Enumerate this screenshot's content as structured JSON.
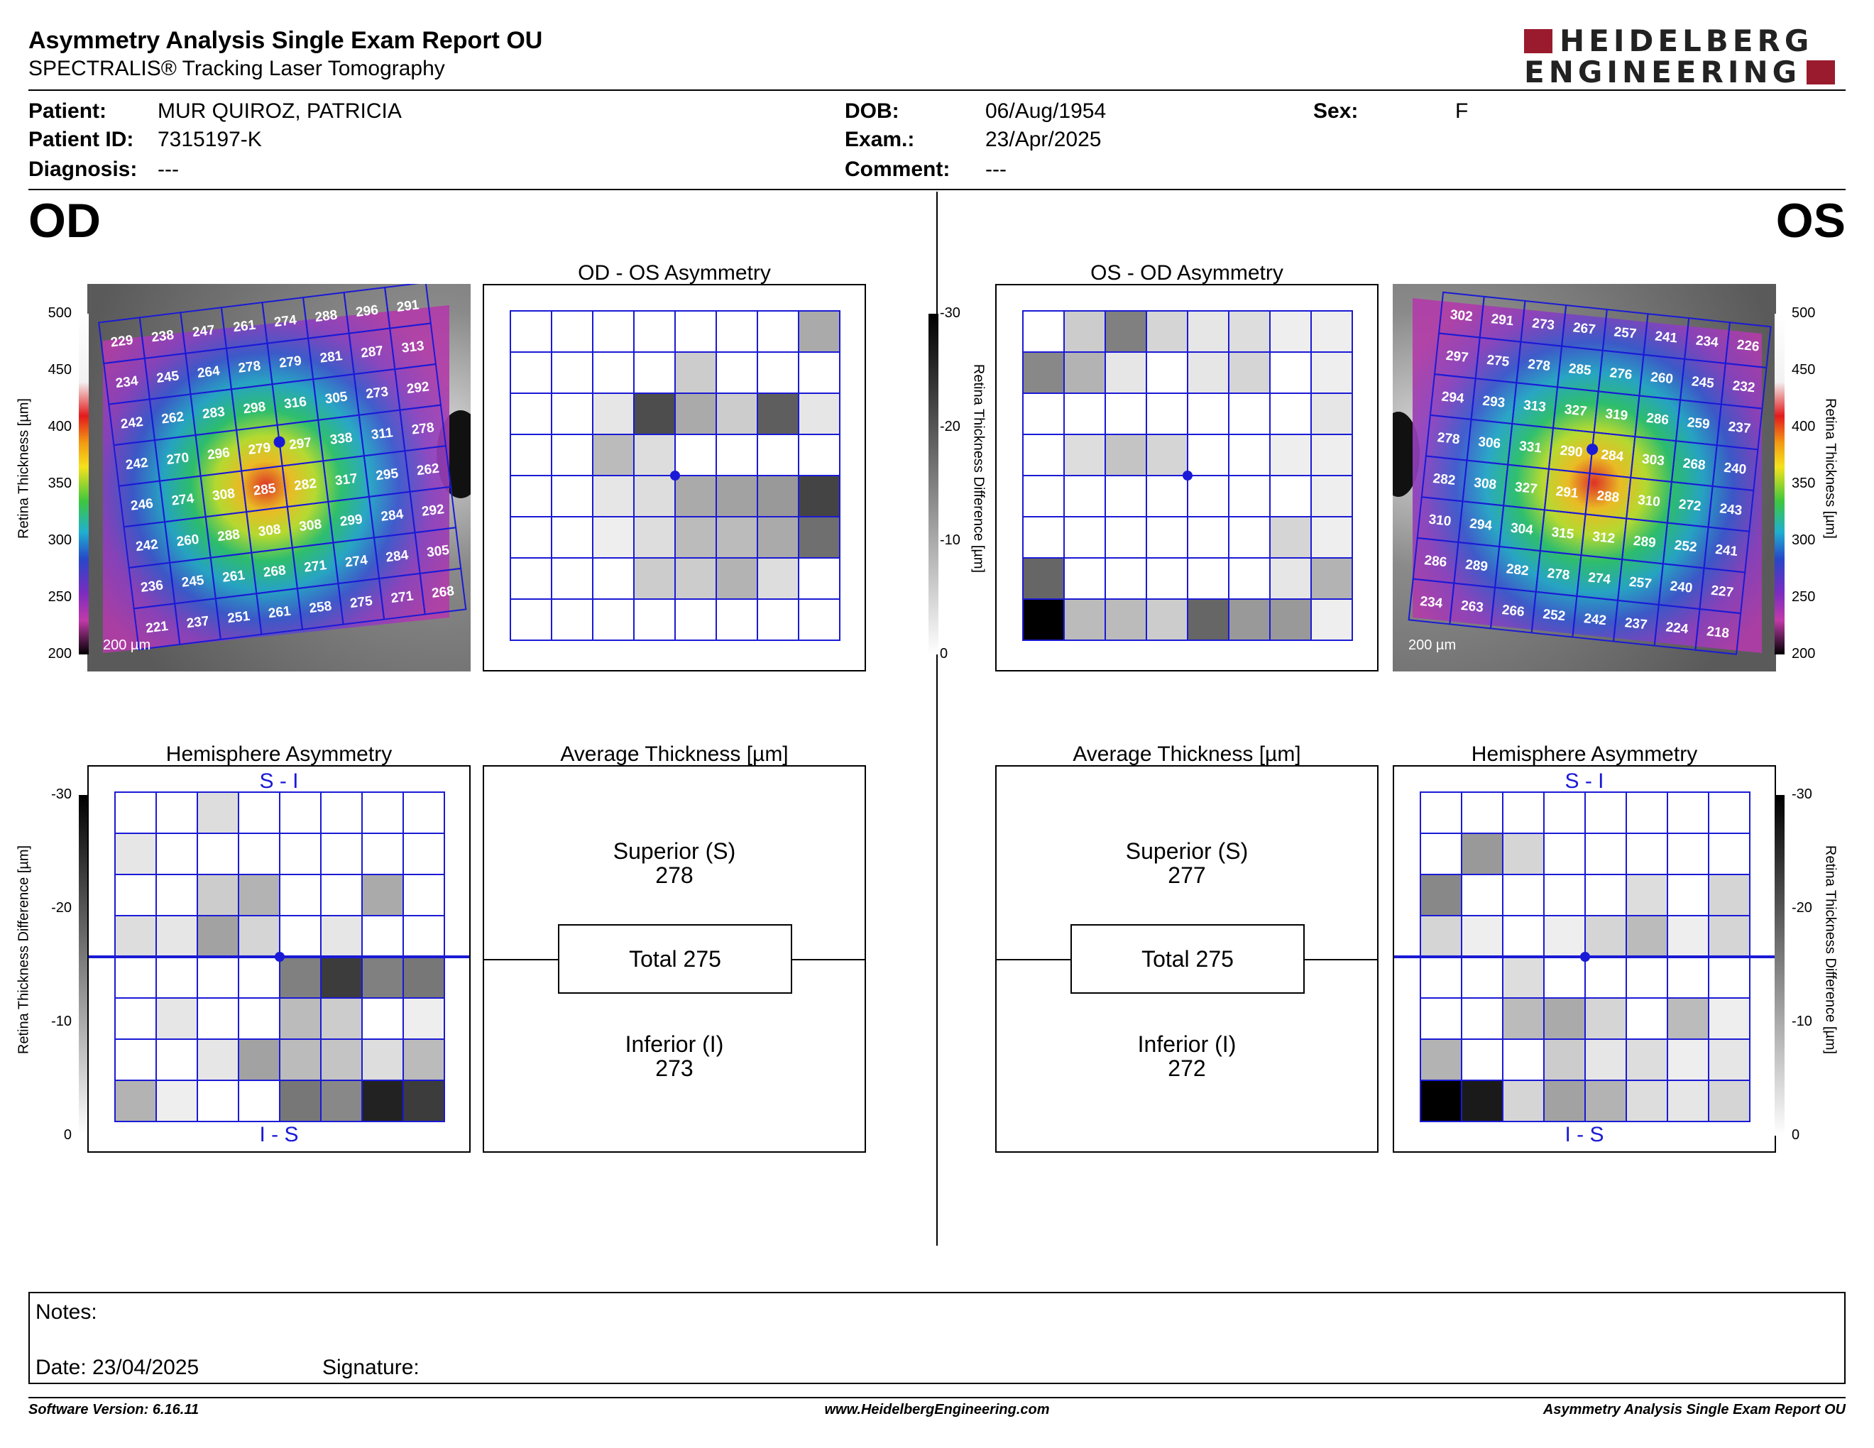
{
  "header": {
    "title": "Asymmetry Analysis Single Exam Report OU",
    "subtitle": "SPECTRALIS® Tracking Laser Tomography",
    "logo_line1": "HEIDELBERG",
    "logo_line2": "ENGINEERING",
    "brand_color": "#9a1b2d"
  },
  "patient": {
    "patient_label": "Patient:",
    "patient_value": "MUR QUIROZ, PATRICIA",
    "id_label": "Patient ID:",
    "id_value": "7315197-K",
    "diagnosis_label": "Diagnosis:",
    "diagnosis_value": "---",
    "dob_label": "DOB:",
    "dob_value": "06/Aug/1954",
    "exam_label": "Exam.:",
    "exam_value": "23/Apr/2025",
    "comment_label": "Comment:",
    "comment_value": "---",
    "sex_label": "Sex:",
    "sex_value": "F"
  },
  "od": {
    "eye_label": "OD",
    "asym_title": "OD - OS Asymmetry",
    "hemi_title": "Hemisphere Asymmetry",
    "hemi_top": "S - I",
    "hemi_bottom": "I - S",
    "avg_title": "Average Thickness [µm]",
    "superior_label": "Superior (S)",
    "superior_value": "278",
    "total_text": "Total 275",
    "inferior_label": "Inferior (I)",
    "inferior_value": "273",
    "scale_label": "200 µm",
    "thickness_grid": [
      [
        229,
        238,
        247,
        261,
        274,
        288,
        296,
        291
      ],
      [
        234,
        245,
        264,
        278,
        279,
        281,
        287,
        313
      ],
      [
        242,
        262,
        283,
        298,
        316,
        305,
        273,
        292
      ],
      [
        242,
        270,
        296,
        279,
        297,
        338,
        311,
        278
      ],
      [
        246,
        274,
        308,
        285,
        282,
        317,
        295,
        262
      ],
      [
        242,
        260,
        288,
        308,
        308,
        299,
        284,
        292
      ],
      [
        236,
        245,
        261,
        268,
        271,
        274,
        284,
        305
      ],
      [
        221,
        237,
        251,
        261,
        258,
        275,
        271,
        268
      ]
    ],
    "asym_grid": [
      [
        0,
        0,
        0,
        0,
        0,
        0,
        0,
        10
      ],
      [
        0,
        0,
        0,
        0,
        6,
        0,
        0,
        0
      ],
      [
        0,
        0,
        3,
        21,
        10,
        6,
        19,
        3
      ],
      [
        0,
        0,
        8,
        4,
        0,
        0,
        0,
        0
      ],
      [
        0,
        0,
        3,
        4,
        10,
        11,
        12,
        22
      ],
      [
        0,
        0,
        2,
        4,
        8,
        8,
        10,
        17
      ],
      [
        0,
        0,
        0,
        6,
        6,
        9,
        4,
        0
      ],
      [
        0,
        0,
        0,
        0,
        0,
        0,
        0,
        0
      ]
    ],
    "hemi_grid": [
      [
        0,
        0,
        4,
        0,
        0,
        0,
        0,
        0
      ],
      [
        3,
        0,
        0,
        0,
        0,
        0,
        0,
        0
      ],
      [
        0,
        0,
        6,
        9,
        0,
        0,
        10,
        0
      ],
      [
        4,
        3,
        11,
        5,
        0,
        3,
        0,
        0
      ],
      [
        0,
        0,
        0,
        0,
        15,
        23,
        15,
        16
      ],
      [
        0,
        3,
        0,
        0,
        8,
        6,
        0,
        2
      ],
      [
        0,
        0,
        3,
        11,
        8,
        7,
        4,
        8
      ],
      [
        9,
        2,
        0,
        0,
        16,
        14,
        26,
        23
      ]
    ]
  },
  "os": {
    "eye_label": "OS",
    "asym_title": "OS - OD Asymmetry",
    "hemi_title": "Hemisphere Asymmetry",
    "hemi_top": "S - I",
    "hemi_bottom": "I - S",
    "avg_title": "Average Thickness [µm]",
    "superior_label": "Superior (S)",
    "superior_value": "277",
    "total_text": "Total 275",
    "inferior_label": "Inferior (I)",
    "inferior_value": "272",
    "scale_label": "200 µm",
    "thickness_grid": [
      [
        302,
        291,
        273,
        267,
        257,
        241,
        234,
        226
      ],
      [
        297,
        275,
        278,
        285,
        276,
        260,
        245,
        232
      ],
      [
        294,
        293,
        313,
        327,
        319,
        286,
        259,
        237
      ],
      [
        278,
        306,
        331,
        290,
        284,
        303,
        268,
        240
      ],
      [
        282,
        308,
        327,
        291,
        288,
        310,
        272,
        243
      ],
      [
        310,
        294,
        304,
        315,
        312,
        289,
        252,
        241
      ],
      [
        286,
        289,
        282,
        278,
        274,
        257,
        240,
        227
      ],
      [
        234,
        263,
        266,
        252,
        242,
        237,
        224,
        218
      ]
    ],
    "asym_grid": [
      [
        0,
        6,
        15,
        5,
        3,
        4,
        2,
        2
      ],
      [
        14,
        9,
        3,
        0,
        3,
        5,
        0,
        2
      ],
      [
        0,
        0,
        0,
        0,
        0,
        0,
        0,
        3
      ],
      [
        0,
        4,
        7,
        5,
        0,
        0,
        2,
        2
      ],
      [
        0,
        0,
        0,
        0,
        0,
        0,
        0,
        2
      ],
      [
        0,
        0,
        0,
        0,
        0,
        0,
        5,
        2
      ],
      [
        18,
        0,
        0,
        0,
        0,
        0,
        3,
        9
      ],
      [
        30,
        8,
        8,
        6,
        18,
        12,
        12,
        2
      ]
    ],
    "hemi_grid": [
      [
        0,
        0,
        0,
        0,
        0,
        0,
        0,
        0
      ],
      [
        0,
        12,
        5,
        0,
        0,
        0,
        0,
        0
      ],
      [
        14,
        0,
        0,
        0,
        0,
        4,
        0,
        5
      ],
      [
        5,
        2,
        0,
        2,
        5,
        8,
        2,
        5
      ],
      [
        0,
        0,
        4,
        0,
        0,
        0,
        0,
        0
      ],
      [
        0,
        0,
        8,
        10,
        5,
        0,
        8,
        2
      ],
      [
        9,
        0,
        0,
        6,
        3,
        4,
        2,
        3
      ],
      [
        30,
        27,
        5,
        11,
        9,
        4,
        3,
        5
      ]
    ]
  },
  "scales": {
    "thickness_ticks": [
      "500",
      "450",
      "400",
      "350",
      "300",
      "250",
      "200"
    ],
    "thickness_axis_label": "Retina  Thickness [µm]",
    "diff_ticks": [
      "-30",
      "-20",
      "-10",
      "0"
    ],
    "diff_axis_label": "Retina Thickness Difference [µm]"
  },
  "notes": {
    "notes_label": "Notes:",
    "date_label": "Date: 23/04/2025",
    "signature_label": "Signature:"
  },
  "footer": {
    "left": "Software Version: 6.16.11",
    "center": "www.HeidelbergEngineering.com",
    "right": "Asymmetry Analysis Single Exam Report OU"
  }
}
